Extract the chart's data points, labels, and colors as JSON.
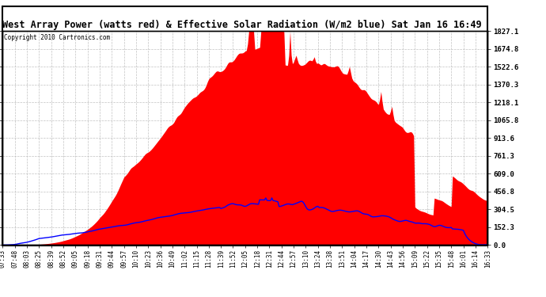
{
  "title": "West Array Power (watts red) & Effective Solar Radiation (W/m2 blue) Sat Jan 16 16:49",
  "copyright": "Copyright 2010 Cartronics.com",
  "y_max": 1827.1,
  "y_min": 0.0,
  "y_ticks": [
    0.0,
    152.3,
    304.5,
    456.8,
    609.0,
    761.3,
    913.6,
    1065.8,
    1218.1,
    1370.3,
    1522.6,
    1674.8,
    1827.1
  ],
  "x_labels": [
    "07:33",
    "07:48",
    "08:03",
    "08:25",
    "08:39",
    "08:52",
    "09:05",
    "09:18",
    "09:31",
    "09:44",
    "09:57",
    "10:10",
    "10:23",
    "10:36",
    "10:49",
    "11:02",
    "11:15",
    "11:28",
    "11:39",
    "11:52",
    "12:05",
    "12:18",
    "12:31",
    "12:44",
    "12:57",
    "13:10",
    "13:24",
    "13:38",
    "13:51",
    "14:04",
    "14:17",
    "14:30",
    "14:43",
    "14:56",
    "15:09",
    "15:22",
    "15:35",
    "15:48",
    "16:01",
    "16:14",
    "16:33"
  ],
  "bg_color": "#ffffff",
  "red_color": "#ff0000",
  "blue_color": "#0000ff",
  "grid_color": "#bbbbbb",
  "border_color": "#000000",
  "figsize": [
    6.9,
    3.75
  ],
  "dpi": 100
}
